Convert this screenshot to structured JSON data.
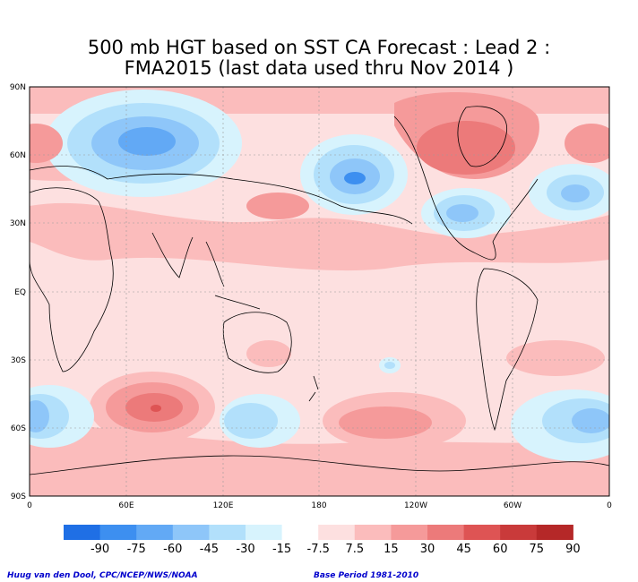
{
  "title_line1": "500 mb HGT based on SST CA Forecast : Lead 2 :",
  "title_line2": "FMA2015 (last data used thru Nov 2014 )",
  "lat_labels": [
    "90N",
    "60N",
    "30N",
    "EQ",
    "30S",
    "60S",
    "90S"
  ],
  "lon_labels": [
    "0",
    "60E",
    "120E",
    "180",
    "120W",
    "60W",
    "0"
  ],
  "colorbar": {
    "colors": [
      "#1f6fe5",
      "#3d8ff0",
      "#62a9f5",
      "#8ec6f9",
      "#b2e0fb",
      "#d7f3fd",
      "#ffffff",
      "#fde0e0",
      "#fbbcbc",
      "#f59a9a",
      "#ec7a7a",
      "#de5454",
      "#c93a3a",
      "#b52828"
    ],
    "labels": [
      "-90",
      "-75",
      "-60",
      "-45",
      "-30",
      "-15",
      "-7.5",
      "7.5",
      "15",
      "30",
      "45",
      "60",
      "75",
      "90"
    ]
  },
  "footer": {
    "credit": "Huug van den Dool, CPC/NCEP/NWS/NOAA",
    "base_period": "Base Period 1981-2010"
  }
}
